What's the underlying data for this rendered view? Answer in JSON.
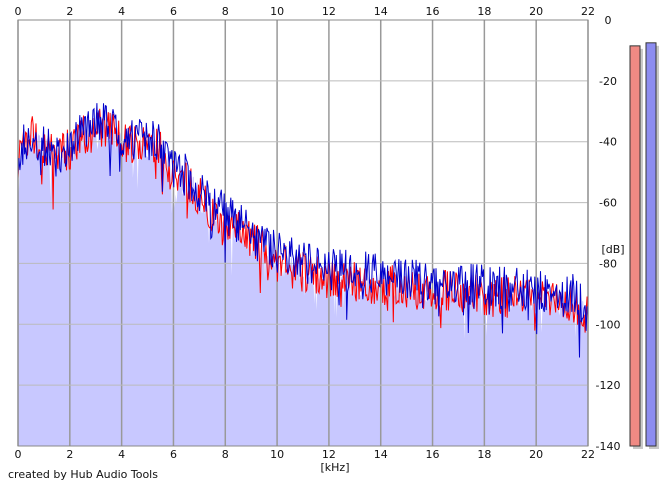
{
  "chart_data": {
    "type": "area",
    "xlabel": "[kHz]",
    "ylabel": "[dB]",
    "xlim": [
      0,
      22
    ],
    "ylim": [
      -140,
      0
    ],
    "x_ticks": [
      "0",
      "2",
      "4",
      "6",
      "8",
      "10",
      "12",
      "14",
      "16",
      "18",
      "20",
      "22"
    ],
    "y_ticks": [
      "0",
      "-20",
      "-40",
      "-60",
      "-80",
      "-100",
      "-120",
      "-140"
    ],
    "grid": true,
    "series": [
      {
        "color": "#ff0000",
        "x": [
          0,
          0.5,
          1,
          1.5,
          2,
          2.5,
          3,
          3.5,
          4,
          4.5,
          5,
          5.5,
          6,
          6.5,
          7,
          7.5,
          8,
          8.5,
          9,
          9.5,
          10,
          10.5,
          11,
          11.5,
          12,
          12.5,
          13,
          13.5,
          14,
          14.5,
          15,
          15.5,
          16,
          16.5,
          17,
          17.5,
          18,
          18.5,
          19,
          19.5,
          20,
          20.5,
          21,
          21.5,
          22
        ],
        "values": [
          -45,
          -38,
          -42,
          -46,
          -42,
          -38,
          -36,
          -36,
          -40,
          -41,
          -41,
          -43,
          -52,
          -53,
          -58,
          -64,
          -66,
          -70,
          -73,
          -75,
          -79,
          -81,
          -83,
          -84,
          -85,
          -85,
          -86,
          -86,
          -87,
          -87,
          -88,
          -88,
          -89,
          -89,
          -90,
          -90,
          -90,
          -91,
          -91,
          -91,
          -92,
          -92,
          -93,
          -93,
          -98
        ]
      },
      {
        "color": "#0000cc",
        "x": [
          0,
          0.5,
          1,
          1.5,
          2,
          2.5,
          3,
          3.5,
          4,
          4.5,
          5,
          5.5,
          6,
          6.5,
          7,
          7.5,
          8,
          8.5,
          9,
          9.5,
          10,
          10.5,
          11,
          11.5,
          12,
          12.5,
          13,
          13.5,
          14,
          14.5,
          15,
          15.5,
          16,
          16.5,
          17,
          17.5,
          18,
          18.5,
          19,
          19.5,
          20,
          20.5,
          21,
          21.5,
          22
        ],
        "values": [
          -44,
          -37,
          -41,
          -45,
          -40,
          -37,
          -34,
          -34,
          -38,
          -39,
          -39,
          -41,
          -50,
          -51,
          -56,
          -62,
          -63,
          -67,
          -70,
          -72,
          -76,
          -78,
          -80,
          -81,
          -82,
          -82,
          -83,
          -83,
          -84,
          -84,
          -85,
          -85,
          -86,
          -86,
          -87,
          -87,
          -87,
          -88,
          -88,
          -88,
          -89,
          -89,
          -90,
          -90,
          -96
        ]
      }
    ],
    "fill_color": "#c8c8ff",
    "credit": "created by Hub Audio Tools",
    "meters": [
      {
        "channel": "left",
        "color": "#f08a84",
        "level_db": -8.5
      },
      {
        "channel": "right",
        "color": "#8c8cf0",
        "level_db": -7.5
      }
    ]
  }
}
